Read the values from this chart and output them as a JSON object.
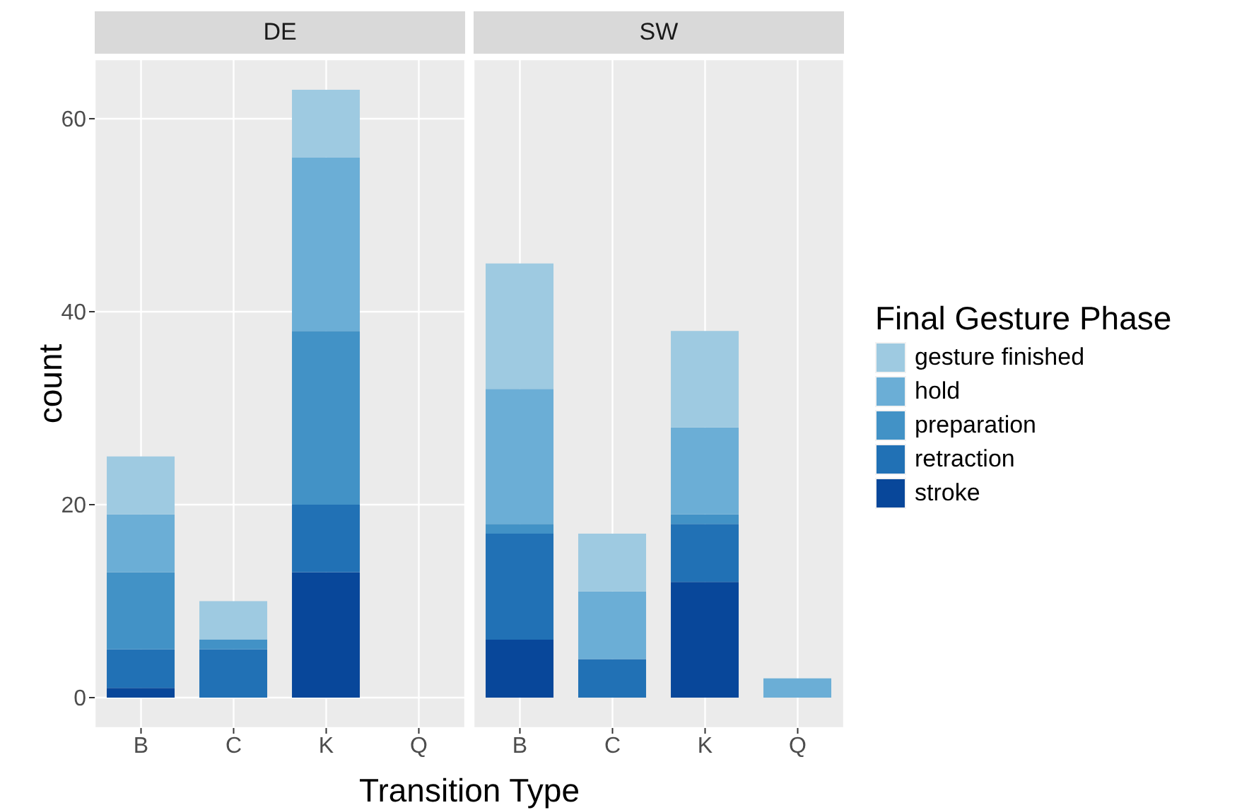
{
  "chart_data": [
    {
      "type": "bar",
      "title": "DE",
      "xlabel": "Transition Type",
      "ylabel": "count",
      "categories": [
        "B",
        "C",
        "K",
        "Q"
      ],
      "stacked": true,
      "ylim": [
        -3.15,
        66.15
      ],
      "yticks": [
        0,
        20,
        40,
        60
      ],
      "grid": true,
      "legend": false,
      "series": [
        {
          "color": "#08479a",
          "values": [
            1,
            null,
            13,
            null
          ]
        },
        {
          "color": "#2171b5",
          "values": [
            4,
            5,
            7,
            null
          ]
        },
        {
          "color": "#4292c6",
          "values": [
            8,
            1,
            18,
            null
          ]
        },
        {
          "color": "#6baed6",
          "values": [
            6,
            null,
            18,
            null
          ]
        },
        {
          "color": "#9ecae1",
          "values": [
            6,
            4,
            7,
            null
          ]
        }
      ]
    },
    {
      "type": "bar",
      "title": "SW",
      "categories": [
        "B",
        "C",
        "K",
        "Q"
      ],
      "stacked": true,
      "ylim": [
        -3.15,
        66.15
      ],
      "yticks": [
        0,
        20,
        40,
        60
      ],
      "tick_labels": "x",
      "grid": true,
      "legend": "right",
      "legend_title": "Final Gesture Phase",
      "series": [
        {
          "name": "stroke",
          "color": "#08479a",
          "values": [
            6,
            null,
            12,
            null
          ]
        },
        {
          "name": "retraction",
          "color": "#2171b5",
          "values": [
            11,
            4,
            6,
            null
          ]
        },
        {
          "name": "preparation",
          "color": "#4292c6",
          "values": [
            1,
            null,
            1,
            null
          ]
        },
        {
          "name": "hold",
          "color": "#6baed6",
          "values": [
            14,
            7,
            9,
            2
          ]
        },
        {
          "name": "gesture finished",
          "color": "#9ecae1",
          "values": [
            13,
            6,
            10,
            null
          ]
        }
      ]
    }
  ]
}
